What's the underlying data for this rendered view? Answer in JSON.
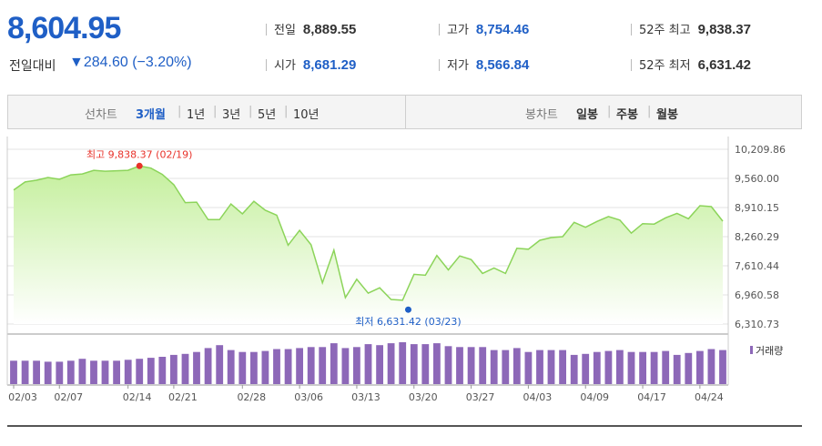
{
  "summary": {
    "price": "8,604.95",
    "change_label": "전일대비",
    "change_value": "▼284.60 (−3.20%)",
    "stats": [
      {
        "label": "전일",
        "value": "8,889.55",
        "color": "#333333"
      },
      {
        "label": "고가",
        "value": "8,754.46",
        "color": "#1f5fc6"
      },
      {
        "label": "52주 최고",
        "value": "9,838.37",
        "color": "#333333"
      },
      {
        "label": "시가",
        "value": "8,681.29",
        "color": "#1f5fc6"
      },
      {
        "label": "저가",
        "value": "8,566.84",
        "color": "#1f5fc6"
      },
      {
        "label": "52주 최저",
        "value": "6,631.42",
        "color": "#333333"
      }
    ]
  },
  "toolbar": {
    "line_chart_label": "선차트",
    "periods": [
      "3개월",
      "1년",
      "3년",
      "5년",
      "10년"
    ],
    "selected_period": "3개월",
    "candle_chart_label": "봉차트",
    "candle_periods": [
      "일봉",
      "주봉",
      "월봉"
    ]
  },
  "chart_data": {
    "type": "area",
    "y_ticks": [
      "10,209.86",
      "9,560.00",
      "8,910.15",
      "8,260.29",
      "7,610.44",
      "6,960.58",
      "6,310.73"
    ],
    "ylim": [
      6310.73,
      10209.86
    ],
    "x_tick_labels": [
      "02/03",
      "02/07",
      "02/14",
      "02/21",
      "02/28",
      "03/06",
      "03/13",
      "03/20",
      "03/27",
      "04/03",
      "04/09",
      "04/17",
      "04/24"
    ],
    "x_tick_index": [
      0,
      4,
      10,
      14,
      20,
      25,
      30,
      35,
      40,
      45,
      50,
      55,
      60
    ],
    "values": [
      9300,
      9480,
      9520,
      9580,
      9540,
      9640,
      9660,
      9740,
      9720,
      9730,
      9740,
      9838.37,
      9790,
      9650,
      9420,
      9020,
      9030,
      8640,
      8640,
      8990,
      8770,
      9050,
      8850,
      8740,
      8070,
      8400,
      8080,
      7230,
      7960,
      6900,
      7310,
      7000,
      7120,
      6860,
      6840,
      7420,
      7400,
      7840,
      7520,
      7830,
      7750,
      7440,
      7560,
      7440,
      8000,
      7980,
      8180,
      8240,
      8260,
      8580,
      8470,
      8600,
      8710,
      8630,
      8340,
      8550,
      8540,
      8680,
      8780,
      8660,
      8950,
      8930,
      8604.95
    ],
    "volume": [
      24,
      24,
      24,
      23,
      23,
      24,
      26,
      24,
      24,
      24,
      25,
      26,
      27,
      28,
      30,
      31,
      33,
      37,
      40,
      35,
      33,
      33,
      34,
      36,
      36,
      37,
      38,
      38,
      42,
      37,
      38,
      41,
      40,
      42,
      43,
      41,
      41,
      42,
      39,
      38,
      38,
      38,
      35,
      35,
      37,
      33,
      35,
      35,
      35,
      30,
      31,
      33,
      34,
      35,
      33,
      33,
      33,
      34,
      30,
      32,
      34,
      36,
      35
    ],
    "volume_legend": "거래량",
    "max_annotation": "최고 9,838.37 (02/19)",
    "min_annotation": "최저 6,631.42 (03/23)",
    "max_value": 9838.37,
    "min_value": 6631.42,
    "max_index": 11,
    "min_index": 34.5,
    "colors": {
      "line": "#8cd45a",
      "fill_top": "#c4ef9c",
      "fill_bottom": "#ffffff",
      "volume": "#8d68b8",
      "max_marker": "#e8322a",
      "min_marker": "#1f5fc6",
      "grid": "#e3e3e3"
    }
  }
}
